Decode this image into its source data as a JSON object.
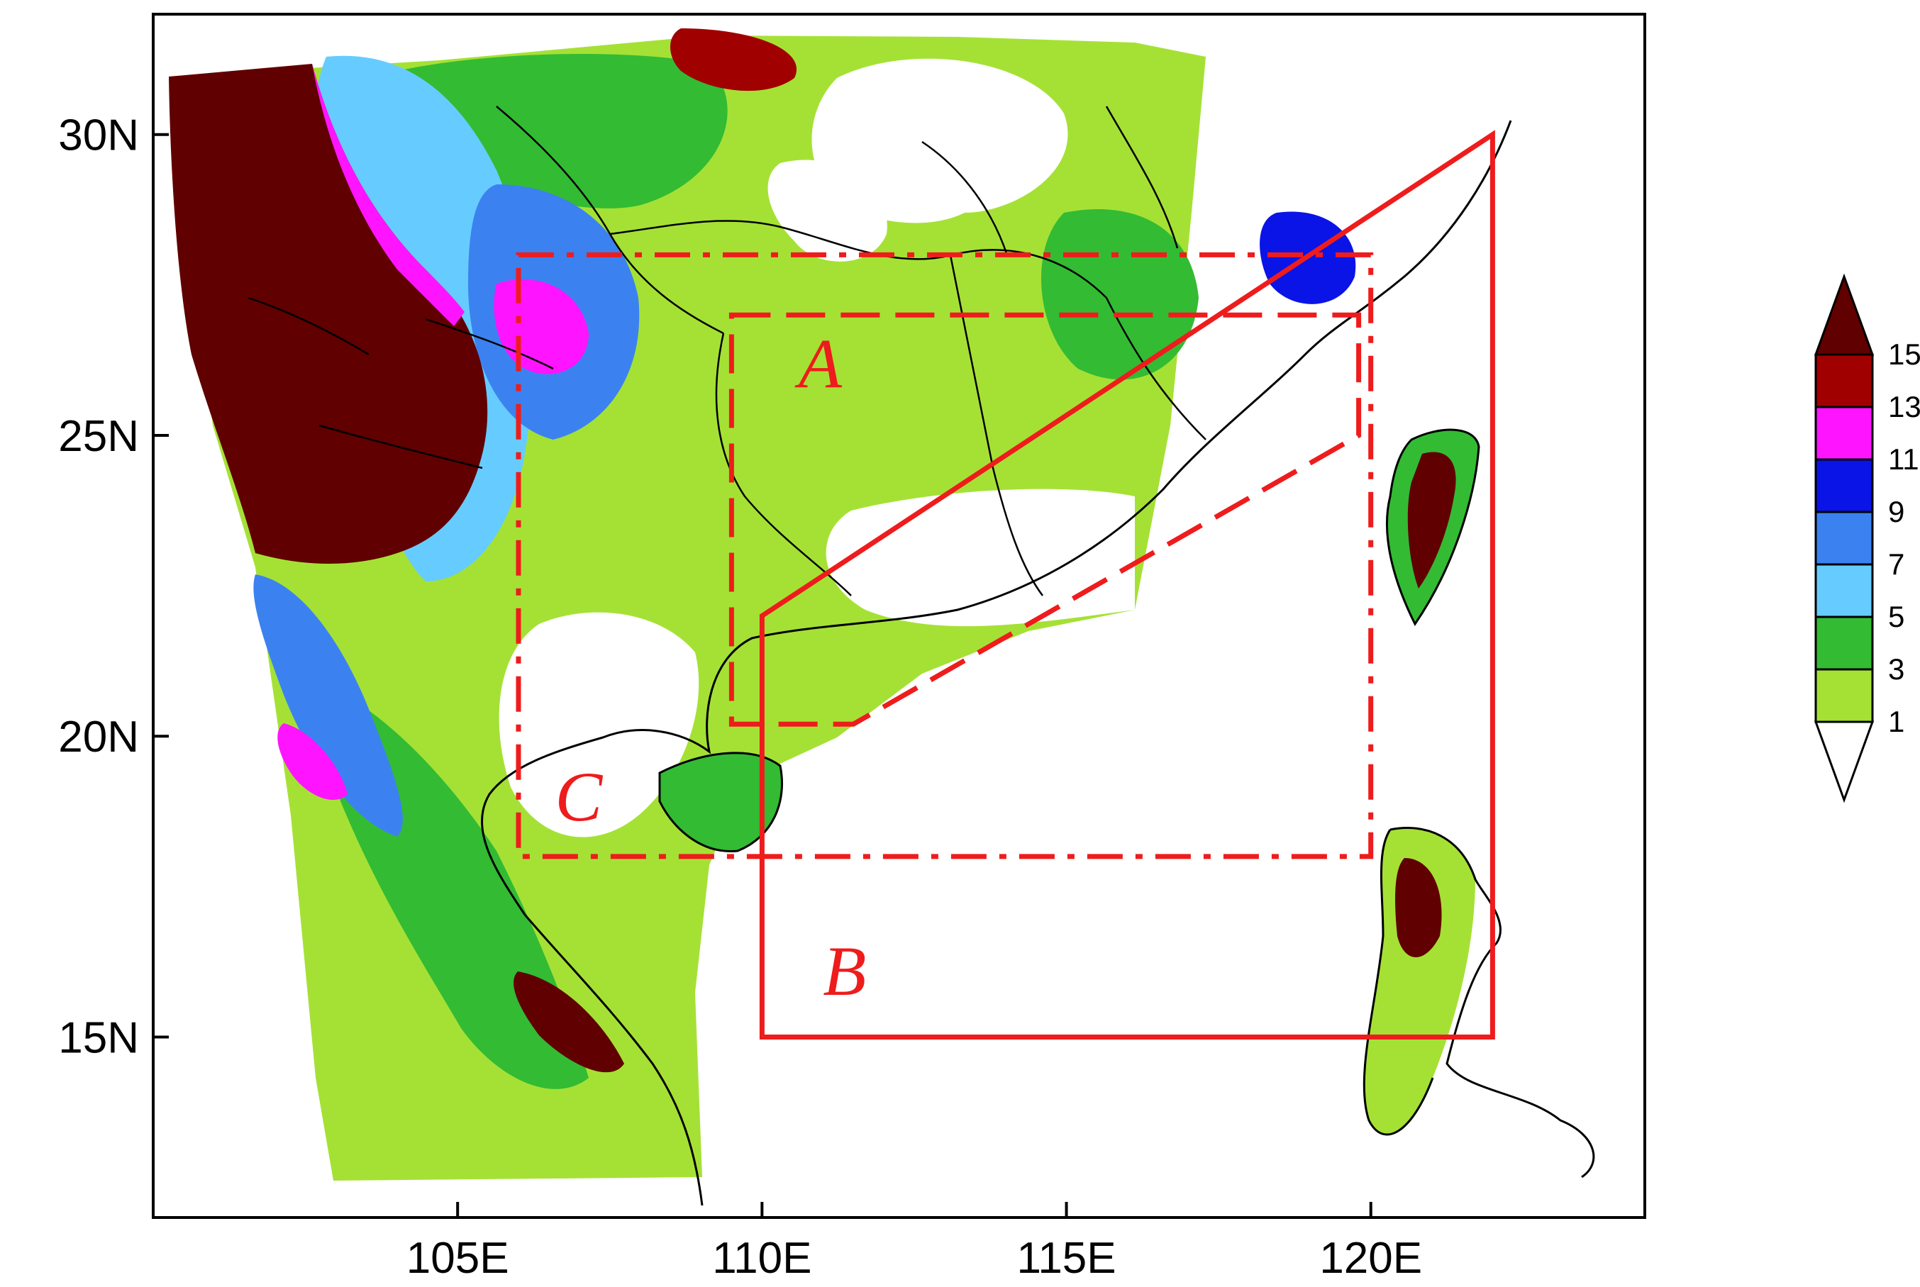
{
  "map": {
    "lon_range": [
      100,
      124.5
    ],
    "lat_range": [
      12,
      32
    ],
    "x_ticks": [
      {
        "value": 105,
        "label": "105E"
      },
      {
        "value": 110,
        "label": "110E"
      },
      {
        "value": 115,
        "label": "115E"
      },
      {
        "value": 120,
        "label": "120E"
      }
    ],
    "y_ticks": [
      {
        "value": 30,
        "label": "30N"
      },
      {
        "value": 25,
        "label": "25N"
      },
      {
        "value": 20,
        "label": "20N"
      },
      {
        "value": 15,
        "label": "15N"
      }
    ],
    "regions": [
      {
        "label": "A",
        "line_style": "dashed",
        "color": "#ee1c1c",
        "polygon": [
          [
            109.5,
            27
          ],
          [
            119.8,
            27
          ],
          [
            119.8,
            25
          ],
          [
            111.5,
            20.2
          ],
          [
            109.5,
            20.2
          ]
        ],
        "label_position": [
          110.6,
          25.8
        ]
      },
      {
        "label": "B",
        "line_style": "solid",
        "color": "#ee1c1c",
        "polygon": [
          [
            110,
            22
          ],
          [
            122,
            30
          ],
          [
            122,
            15
          ],
          [
            110,
            15
          ]
        ],
        "label_position": [
          111,
          15.7
        ]
      },
      {
        "label": "C",
        "line_style": "dash-dot",
        "color": "#ee1c1c",
        "polygon": [
          [
            106,
            28
          ],
          [
            120,
            28
          ],
          [
            120,
            18
          ],
          [
            106,
            18
          ]
        ],
        "label_position": [
          106.6,
          18.6
        ]
      }
    ]
  },
  "colorbar": {
    "levels": [
      "1",
      "3",
      "5",
      "7",
      "9",
      "11",
      "13",
      "15"
    ],
    "colors": [
      "#ffffff",
      "#a5e135",
      "#33bb33",
      "#66ccff",
      "#3b82f0",
      "#0a14e6",
      "#ff14ff",
      "#a00000",
      "#600000"
    ],
    "extend": "both"
  }
}
